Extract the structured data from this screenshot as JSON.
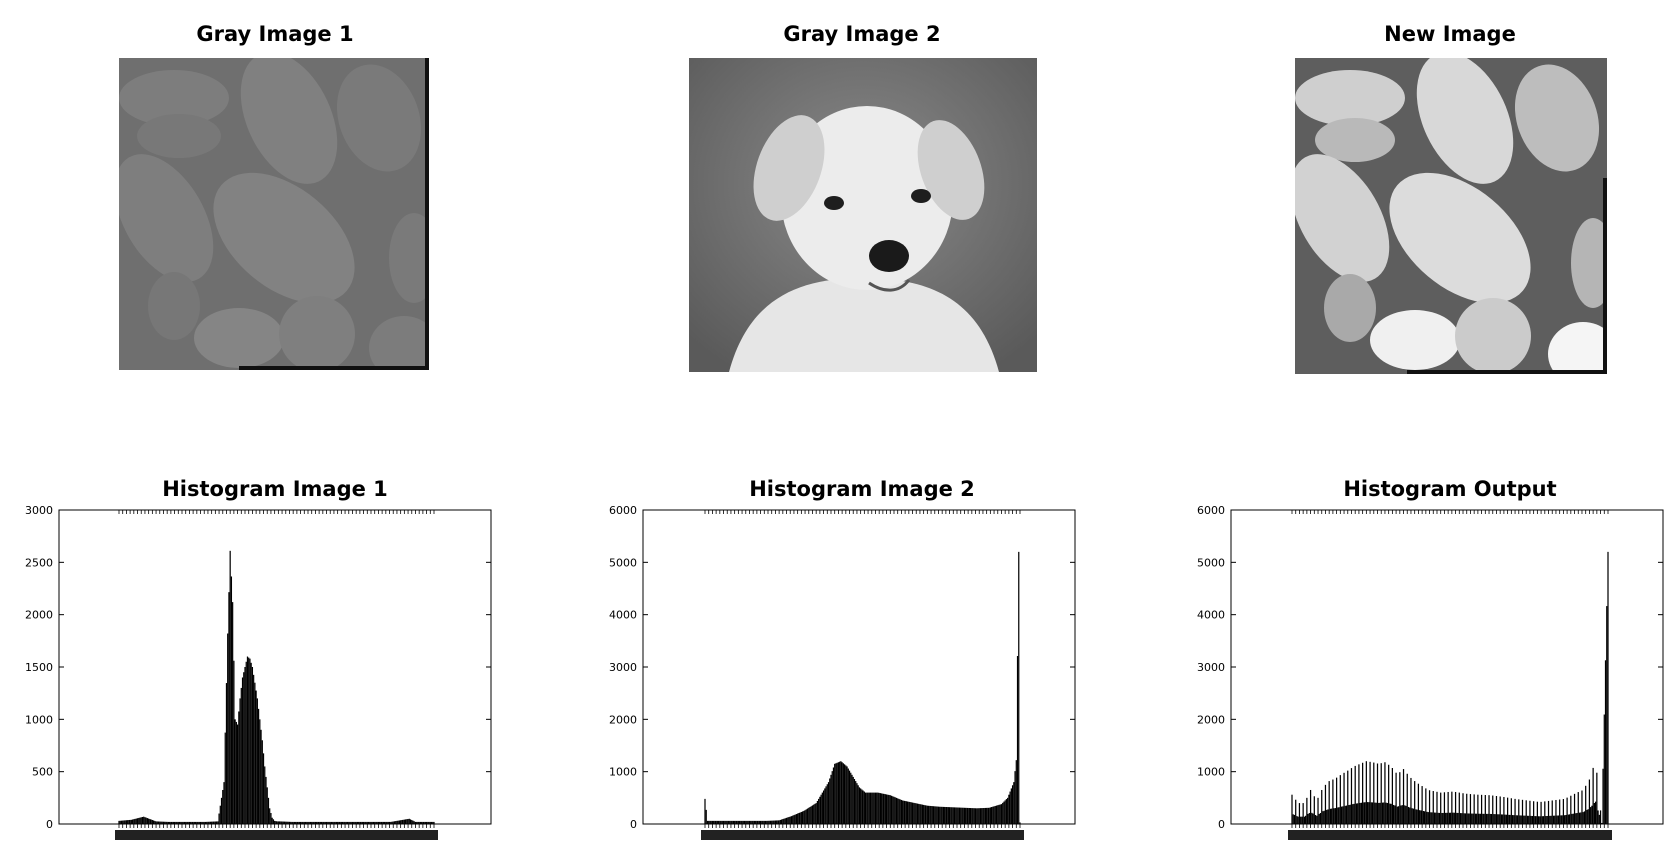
{
  "images": [
    {
      "title": "Gray Image 1",
      "icon": "gray-beans-image"
    },
    {
      "title": "Gray Image 2",
      "icon": "gray-puppy-image"
    },
    {
      "title": "New Image",
      "icon": "equalized-beans-image"
    }
  ],
  "chart_data": [
    {
      "type": "bar",
      "title": "Histogram Image 1",
      "xlabel": "",
      "ylabel": "",
      "xlim": [
        0,
        255
      ],
      "ylim": [
        0,
        3000
      ],
      "yticks": [
        0,
        500,
        1000,
        1500,
        2000,
        2500,
        3000
      ],
      "grid": false,
      "series": [
        {
          "x": [
            0,
            10,
            20,
            30,
            40,
            50,
            60,
            70,
            80,
            85,
            88,
            90,
            92,
            94,
            96,
            98,
            100,
            102,
            104,
            106,
            108,
            110,
            112,
            114,
            116,
            118,
            120,
            122,
            124,
            126,
            128,
            130,
            140,
            160,
            180,
            200,
            220,
            235,
            240,
            250,
            255
          ],
          "values": [
            30,
            40,
            70,
            25,
            20,
            20,
            20,
            20,
            25,
            400,
            1820,
            2610,
            2120,
            1000,
            950,
            1200,
            1400,
            1500,
            1600,
            1580,
            1500,
            1350,
            1200,
            1000,
            800,
            550,
            350,
            150,
            60,
            30,
            25,
            25,
            20,
            20,
            20,
            20,
            20,
            50,
            20,
            20,
            20
          ]
        }
      ]
    },
    {
      "type": "bar",
      "title": "Histogram Image 2",
      "xlabel": "",
      "ylabel": "",
      "xlim": [
        0,
        255
      ],
      "ylim": [
        0,
        6000
      ],
      "yticks": [
        0,
        1000,
        2000,
        3000,
        4000,
        5000,
        6000
      ],
      "grid": false,
      "series": [
        {
          "x": [
            0,
            2,
            10,
            30,
            50,
            60,
            70,
            80,
            90,
            95,
            100,
            105,
            110,
            115,
            120,
            125,
            130,
            140,
            150,
            160,
            170,
            180,
            190,
            200,
            210,
            220,
            230,
            240,
            245,
            250,
            252,
            254,
            255
          ],
          "values": [
            480,
            60,
            60,
            60,
            60,
            70,
            150,
            250,
            400,
            600,
            800,
            1150,
            1200,
            1100,
            900,
            700,
            600,
            600,
            550,
            450,
            400,
            350,
            330,
            320,
            310,
            300,
            310,
            380,
            500,
            800,
            1220,
            5200,
            30
          ]
        }
      ]
    },
    {
      "type": "bar",
      "title": "Histogram Output",
      "xlabel": "",
      "ylabel": "",
      "xlim": [
        0,
        255
      ],
      "ylim": [
        0,
        6000
      ],
      "yticks": [
        0,
        1000,
        2000,
        3000,
        4000,
        5000,
        6000
      ],
      "grid": false,
      "series": [
        {
          "x": [
            0,
            5,
            10,
            15,
            20,
            25,
            30,
            35,
            40,
            45,
            50,
            55,
            60,
            65,
            70,
            75,
            80,
            85,
            90,
            95,
            100,
            110,
            120,
            130,
            140,
            150,
            160,
            170,
            180,
            190,
            200,
            210,
            220,
            230,
            235,
            240,
            245,
            250,
            255
          ],
          "values": [
            560,
            400,
            400,
            650,
            450,
            700,
            820,
            870,
            950,
            1020,
            1100,
            1150,
            1200,
            1180,
            1150,
            1180,
            1100,
            950,
            1050,
            900,
            800,
            650,
            600,
            620,
            580,
            560,
            550,
            520,
            480,
            450,
            420,
            450,
            480,
            600,
            650,
            850,
            1220,
            20,
            5200
          ]
        }
      ]
    }
  ]
}
